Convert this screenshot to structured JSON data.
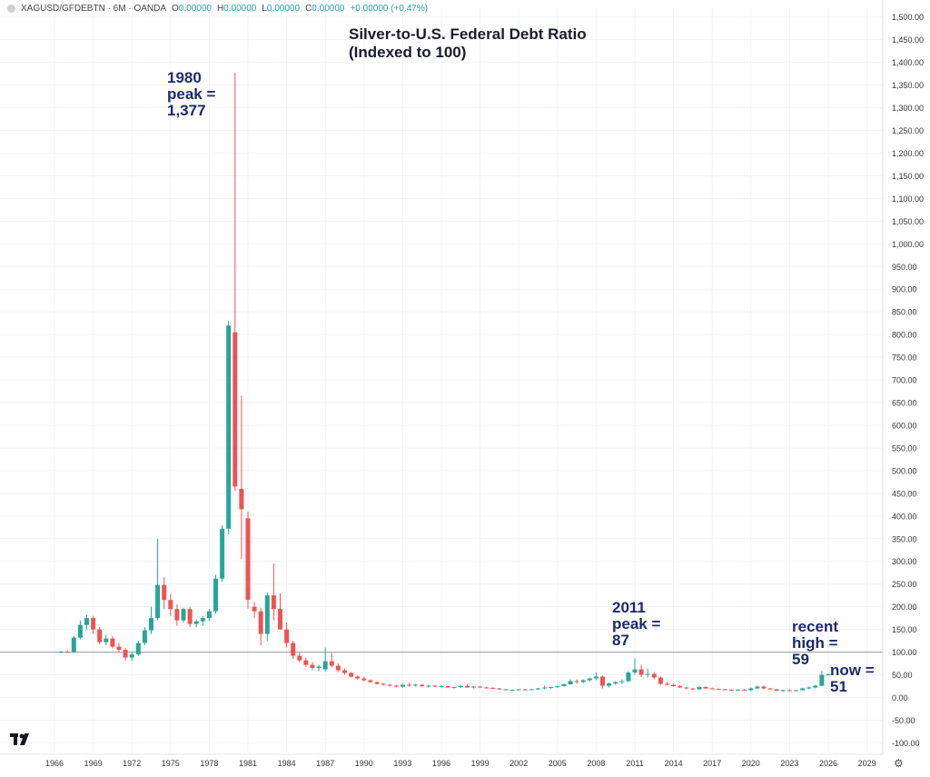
{
  "header": {
    "symbol": "XAGUSD/GFDEBTN · 6M · OANDA",
    "o_label": "O",
    "o_value": "0.00000",
    "h_label": "H",
    "h_value": "0.00000",
    "l_label": "L",
    "l_value": "0.00000",
    "c_label": "C",
    "c_value": "0.00000",
    "change": "+0.00000 (+0.47%)"
  },
  "chart_data": {
    "type": "candlestick",
    "title": "Silver-to-U.S. Federal Debt Ratio\n(Indexed to 100)",
    "ylim": [
      -110,
      1510
    ],
    "yticks": [
      "1,500.00",
      "1,450.00",
      "1,400.00",
      "1,350.00",
      "1,300.00",
      "1,250.00",
      "1,200.00",
      "1,150.00",
      "1,100.00",
      "1,050.00",
      "1,000.00",
      "950.00",
      "900.00",
      "850.00",
      "800.00",
      "750.00",
      "700.00",
      "650.00",
      "600.00",
      "550.00",
      "500.00",
      "450.00",
      "400.00",
      "350.00",
      "300.00",
      "250.00",
      "200.00",
      "150.00",
      "100.00",
      "50.00",
      "0.00",
      "-50.00",
      "-100.00"
    ],
    "xticks": [
      "1966",
      "1969",
      "1972",
      "1975",
      "1978",
      "1981",
      "1984",
      "1987",
      "1990",
      "1993",
      "1996",
      "1999",
      "2002",
      "2005",
      "2008",
      "2011",
      "2014",
      "2017",
      "2020",
      "2023",
      "2026",
      "2029"
    ],
    "reference_line": 100,
    "up_color": "#26a69a",
    "down_color": "#ef5350",
    "candles": [
      {
        "t": 1966.5,
        "o": 100,
        "h": 103,
        "l": 98,
        "c": 101
      },
      {
        "t": 1967.0,
        "o": 101,
        "h": 104,
        "l": 99,
        "c": 100
      },
      {
        "t": 1967.5,
        "o": 100,
        "h": 135,
        "l": 98,
        "c": 132
      },
      {
        "t": 1968.0,
        "o": 132,
        "h": 170,
        "l": 128,
        "c": 160
      },
      {
        "t": 1968.5,
        "o": 160,
        "h": 182,
        "l": 150,
        "c": 175
      },
      {
        "t": 1969.0,
        "o": 175,
        "h": 180,
        "l": 140,
        "c": 150
      },
      {
        "t": 1969.5,
        "o": 150,
        "h": 155,
        "l": 118,
        "c": 122
      },
      {
        "t": 1970.0,
        "o": 122,
        "h": 138,
        "l": 115,
        "c": 130
      },
      {
        "t": 1970.5,
        "o": 130,
        "h": 135,
        "l": 108,
        "c": 112
      },
      {
        "t": 1971.0,
        "o": 112,
        "h": 120,
        "l": 100,
        "c": 105
      },
      {
        "t": 1971.5,
        "o": 105,
        "h": 110,
        "l": 82,
        "c": 88
      },
      {
        "t": 1972.0,
        "o": 88,
        "h": 100,
        "l": 80,
        "c": 95
      },
      {
        "t": 1972.5,
        "o": 95,
        "h": 125,
        "l": 92,
        "c": 120
      },
      {
        "t": 1973.0,
        "o": 120,
        "h": 155,
        "l": 115,
        "c": 148
      },
      {
        "t": 1973.5,
        "o": 148,
        "h": 200,
        "l": 140,
        "c": 175
      },
      {
        "t": 1974.0,
        "o": 175,
        "h": 350,
        "l": 170,
        "c": 248
      },
      {
        "t": 1974.5,
        "o": 248,
        "h": 265,
        "l": 195,
        "c": 215
      },
      {
        "t": 1975.0,
        "o": 215,
        "h": 228,
        "l": 180,
        "c": 195
      },
      {
        "t": 1975.5,
        "o": 195,
        "h": 205,
        "l": 158,
        "c": 170
      },
      {
        "t": 1976.0,
        "o": 170,
        "h": 198,
        "l": 165,
        "c": 195
      },
      {
        "t": 1976.5,
        "o": 195,
        "h": 200,
        "l": 155,
        "c": 162
      },
      {
        "t": 1977.0,
        "o": 162,
        "h": 172,
        "l": 155,
        "c": 168
      },
      {
        "t": 1977.5,
        "o": 168,
        "h": 180,
        "l": 158,
        "c": 175
      },
      {
        "t": 1978.0,
        "o": 175,
        "h": 195,
        "l": 168,
        "c": 190
      },
      {
        "t": 1978.5,
        "o": 190,
        "h": 270,
        "l": 185,
        "c": 262
      },
      {
        "t": 1979.0,
        "o": 262,
        "h": 380,
        "l": 255,
        "c": 372
      },
      {
        "t": 1979.5,
        "o": 372,
        "h": 830,
        "l": 360,
        "c": 820
      },
      {
        "t": 1980.0,
        "o": 805,
        "h": 1377,
        "l": 455,
        "c": 465
      },
      {
        "t": 1980.5,
        "o": 460,
        "h": 665,
        "l": 305,
        "c": 415
      },
      {
        "t": 1981.0,
        "o": 395,
        "h": 410,
        "l": 195,
        "c": 215
      },
      {
        "t": 1981.5,
        "o": 200,
        "h": 210,
        "l": 175,
        "c": 190
      },
      {
        "t": 1982.0,
        "o": 190,
        "h": 198,
        "l": 115,
        "c": 140
      },
      {
        "t": 1982.5,
        "o": 140,
        "h": 232,
        "l": 125,
        "c": 225
      },
      {
        "t": 1983.0,
        "o": 225,
        "h": 295,
        "l": 170,
        "c": 195
      },
      {
        "t": 1983.5,
        "o": 195,
        "h": 230,
        "l": 150,
        "c": 150
      },
      {
        "t": 1984.0,
        "o": 150,
        "h": 165,
        "l": 110,
        "c": 120
      },
      {
        "t": 1984.5,
        "o": 120,
        "h": 125,
        "l": 85,
        "c": 92
      },
      {
        "t": 1985.0,
        "o": 92,
        "h": 98,
        "l": 78,
        "c": 82
      },
      {
        "t": 1985.5,
        "o": 82,
        "h": 88,
        "l": 68,
        "c": 72
      },
      {
        "t": 1986.0,
        "o": 72,
        "h": 78,
        "l": 60,
        "c": 65
      },
      {
        "t": 1986.5,
        "o": 65,
        "h": 72,
        "l": 58,
        "c": 68
      },
      {
        "t": 1987.0,
        "o": 62,
        "h": 110,
        "l": 58,
        "c": 80
      },
      {
        "t": 1987.5,
        "o": 80,
        "h": 98,
        "l": 66,
        "c": 70
      },
      {
        "t": 1988.0,
        "o": 70,
        "h": 75,
        "l": 56,
        "c": 60
      },
      {
        "t": 1988.5,
        "o": 60,
        "h": 64,
        "l": 50,
        "c": 54
      },
      {
        "t": 1989.0,
        "o": 54,
        "h": 56,
        "l": 44,
        "c": 46
      },
      {
        "t": 1989.5,
        "o": 46,
        "h": 48,
        "l": 40,
        "c": 42
      },
      {
        "t": 1990.0,
        "o": 42,
        "h": 45,
        "l": 35,
        "c": 38
      },
      {
        "t": 1990.5,
        "o": 38,
        "h": 40,
        "l": 32,
        "c": 34
      },
      {
        "t": 1991.0,
        "o": 34,
        "h": 35,
        "l": 28,
        "c": 30
      },
      {
        "t": 1991.5,
        "o": 30,
        "h": 32,
        "l": 26,
        "c": 28
      },
      {
        "t": 1992.0,
        "o": 28,
        "h": 30,
        "l": 24,
        "c": 26
      },
      {
        "t": 1992.5,
        "o": 26,
        "h": 28,
        "l": 22,
        "c": 24
      },
      {
        "t": 1993.0,
        "o": 24,
        "h": 30,
        "l": 22,
        "c": 28
      },
      {
        "t": 1993.5,
        "o": 28,
        "h": 32,
        "l": 24,
        "c": 26
      },
      {
        "t": 1994.0,
        "o": 26,
        "h": 30,
        "l": 24,
        "c": 28
      },
      {
        "t": 1994.5,
        "o": 28,
        "h": 30,
        "l": 24,
        "c": 25
      },
      {
        "t": 1995.0,
        "o": 25,
        "h": 28,
        "l": 22,
        "c": 26
      },
      {
        "t": 1995.5,
        "o": 26,
        "h": 28,
        "l": 23,
        "c": 24
      },
      {
        "t": 1996.0,
        "o": 24,
        "h": 27,
        "l": 22,
        "c": 25
      },
      {
        "t": 1996.5,
        "o": 25,
        "h": 26,
        "l": 21,
        "c": 22
      },
      {
        "t": 1997.0,
        "o": 22,
        "h": 24,
        "l": 20,
        "c": 23
      },
      {
        "t": 1997.5,
        "o": 23,
        "h": 27,
        "l": 21,
        "c": 25
      },
      {
        "t": 1998.0,
        "o": 25,
        "h": 30,
        "l": 21,
        "c": 22
      },
      {
        "t": 1998.5,
        "o": 22,
        "h": 25,
        "l": 20,
        "c": 24
      },
      {
        "t": 1999.0,
        "o": 24,
        "h": 26,
        "l": 21,
        "c": 22
      },
      {
        "t": 1999.5,
        "o": 22,
        "h": 24,
        "l": 20,
        "c": 21
      },
      {
        "t": 2000.0,
        "o": 21,
        "h": 23,
        "l": 19,
        "c": 20
      },
      {
        "t": 2000.5,
        "o": 20,
        "h": 21,
        "l": 17,
        "c": 18
      },
      {
        "t": 2001.0,
        "o": 18,
        "h": 19,
        "l": 16,
        "c": 17
      },
      {
        "t": 2001.5,
        "o": 17,
        "h": 18,
        "l": 16,
        "c": 17
      },
      {
        "t": 2002.0,
        "o": 17,
        "h": 19,
        "l": 16,
        "c": 18
      },
      {
        "t": 2002.5,
        "o": 18,
        "h": 19,
        "l": 16,
        "c": 17
      },
      {
        "t": 2003.0,
        "o": 17,
        "h": 19,
        "l": 16,
        "c": 18
      },
      {
        "t": 2003.5,
        "o": 18,
        "h": 21,
        "l": 17,
        "c": 20
      },
      {
        "t": 2004.0,
        "o": 20,
        "h": 26,
        "l": 18,
        "c": 22
      },
      {
        "t": 2004.5,
        "o": 22,
        "h": 24,
        "l": 19,
        "c": 23
      },
      {
        "t": 2005.0,
        "o": 23,
        "h": 26,
        "l": 21,
        "c": 25
      },
      {
        "t": 2005.5,
        "o": 25,
        "h": 30,
        "l": 24,
        "c": 29
      },
      {
        "t": 2006.0,
        "o": 29,
        "h": 40,
        "l": 28,
        "c": 36
      },
      {
        "t": 2006.5,
        "o": 36,
        "h": 40,
        "l": 30,
        "c": 34
      },
      {
        "t": 2007.0,
        "o": 34,
        "h": 40,
        "l": 32,
        "c": 38
      },
      {
        "t": 2007.5,
        "o": 38,
        "h": 44,
        "l": 35,
        "c": 42
      },
      {
        "t": 2008.0,
        "o": 42,
        "h": 55,
        "l": 38,
        "c": 46
      },
      {
        "t": 2008.5,
        "o": 46,
        "h": 48,
        "l": 20,
        "c": 26
      },
      {
        "t": 2009.0,
        "o": 26,
        "h": 33,
        "l": 22,
        "c": 31
      },
      {
        "t": 2009.5,
        "o": 31,
        "h": 36,
        "l": 28,
        "c": 34
      },
      {
        "t": 2010.0,
        "o": 34,
        "h": 40,
        "l": 30,
        "c": 36
      },
      {
        "t": 2010.5,
        "o": 36,
        "h": 58,
        "l": 34,
        "c": 55
      },
      {
        "t": 2011.0,
        "o": 55,
        "h": 87,
        "l": 50,
        "c": 62
      },
      {
        "t": 2011.5,
        "o": 62,
        "h": 72,
        "l": 45,
        "c": 50
      },
      {
        "t": 2012.0,
        "o": 50,
        "h": 64,
        "l": 44,
        "c": 52
      },
      {
        "t": 2012.5,
        "o": 52,
        "h": 56,
        "l": 40,
        "c": 44
      },
      {
        "t": 2013.0,
        "o": 44,
        "h": 46,
        "l": 28,
        "c": 30
      },
      {
        "t": 2013.5,
        "o": 30,
        "h": 34,
        "l": 26,
        "c": 28
      },
      {
        "t": 2014.0,
        "o": 28,
        "h": 30,
        "l": 24,
        "c": 25
      },
      {
        "t": 2014.5,
        "o": 25,
        "h": 27,
        "l": 21,
        "c": 22
      },
      {
        "t": 2015.0,
        "o": 22,
        "h": 23,
        "l": 19,
        "c": 20
      },
      {
        "t": 2015.5,
        "o": 20,
        "h": 21,
        "l": 17,
        "c": 18
      },
      {
        "t": 2016.0,
        "o": 18,
        "h": 25,
        "l": 17,
        "c": 23
      },
      {
        "t": 2016.5,
        "o": 23,
        "h": 25,
        "l": 19,
        "c": 20
      },
      {
        "t": 2017.0,
        "o": 20,
        "h": 22,
        "l": 18,
        "c": 19
      },
      {
        "t": 2017.5,
        "o": 19,
        "h": 20,
        "l": 17,
        "c": 18
      },
      {
        "t": 2018.0,
        "o": 18,
        "h": 19,
        "l": 16,
        "c": 17
      },
      {
        "t": 2018.5,
        "o": 17,
        "h": 18,
        "l": 15,
        "c": 16
      },
      {
        "t": 2019.0,
        "o": 16,
        "h": 18,
        "l": 15,
        "c": 17
      },
      {
        "t": 2019.5,
        "o": 17,
        "h": 19,
        "l": 15,
        "c": 16
      },
      {
        "t": 2020.0,
        "o": 16,
        "h": 22,
        "l": 14,
        "c": 20
      },
      {
        "t": 2020.5,
        "o": 20,
        "h": 26,
        "l": 19,
        "c": 24
      },
      {
        "t": 2021.0,
        "o": 24,
        "h": 26,
        "l": 18,
        "c": 20
      },
      {
        "t": 2021.5,
        "o": 20,
        "h": 21,
        "l": 17,
        "c": 18
      },
      {
        "t": 2022.0,
        "o": 18,
        "h": 19,
        "l": 14,
        "c": 15
      },
      {
        "t": 2022.5,
        "o": 15,
        "h": 17,
        "l": 13,
        "c": 16
      },
      {
        "t": 2023.0,
        "o": 16,
        "h": 18,
        "l": 14,
        "c": 15
      },
      {
        "t": 2023.5,
        "o": 15,
        "h": 17,
        "l": 14,
        "c": 16
      },
      {
        "t": 2024.0,
        "o": 16,
        "h": 22,
        "l": 15,
        "c": 20
      },
      {
        "t": 2024.5,
        "o": 20,
        "h": 24,
        "l": 18,
        "c": 22
      },
      {
        "t": 2025.0,
        "o": 22,
        "h": 28,
        "l": 20,
        "c": 26
      },
      {
        "t": 2025.5,
        "o": 26,
        "h": 59,
        "l": 25,
        "c": 50
      },
      {
        "t": 2026.0,
        "o": 50,
        "h": 53,
        "l": 48,
        "c": 51
      }
    ]
  },
  "annotations": [
    {
      "id": "ann-1980",
      "text": "1980\npeak =\n1,377"
    },
    {
      "id": "ann-2011",
      "text": "2011\npeak =\n87"
    },
    {
      "id": "ann-recent",
      "text": "recent\nhigh =\n59"
    },
    {
      "id": "ann-now",
      "text": "now =\n51"
    }
  ],
  "icons": {
    "logo": "tradingview-logo",
    "settings": "gear-icon"
  }
}
